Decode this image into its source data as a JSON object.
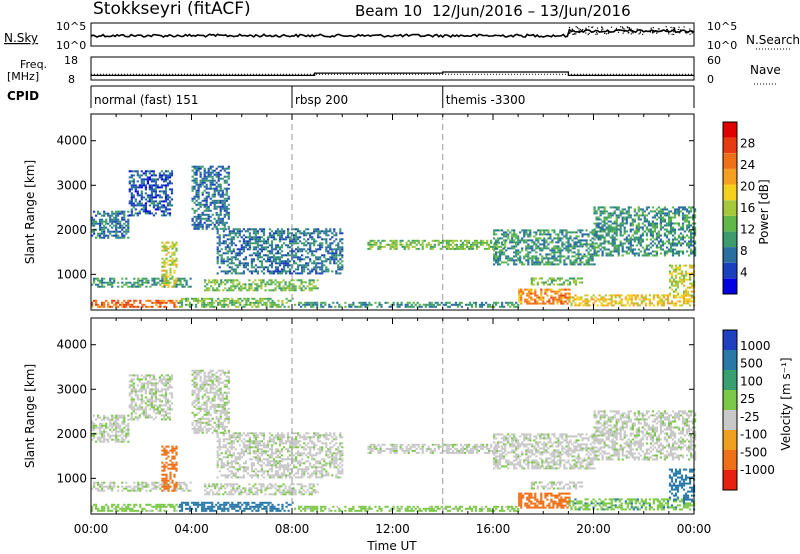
{
  "title": {
    "site": "Stokkseyri (fitACF)",
    "beam": "Beam 10",
    "dates": "12/Jun/2016 – 13/Jun/2016"
  },
  "nsky_panel": {
    "left_label": "N.Sky",
    "right_label": "N.Search",
    "left_ticks": [
      "10^5",
      "10^0"
    ],
    "right_ticks": [
      "10^5",
      "10^0"
    ]
  },
  "freq_panel": {
    "left_label_1": "Freq.",
    "left_label_2": "[MHz]",
    "right_label": "Nave",
    "left_ticks": [
      "18",
      "8"
    ],
    "right_ticks": [
      "60",
      "0"
    ]
  },
  "cpid_panel": {
    "label": "CPID",
    "modes": [
      {
        "name": "normal (fast) 151",
        "start_hour": 0
      },
      {
        "name": "rbsp 200",
        "start_hour": 8
      },
      {
        "name": "themis -3300",
        "start_hour": 14
      }
    ]
  },
  "time_axis": {
    "label": "Time UT",
    "ticks": [
      "00:00",
      "04:00",
      "08:00",
      "12:00",
      "16:00",
      "20:00",
      "00:00"
    ]
  },
  "power_panel": {
    "ylabel": "Slant Range [km]",
    "yticks": [
      "1000",
      "2000",
      "3000",
      "4000"
    ],
    "colorbar_label": "Power [dB]",
    "colorbar_ticks": [
      "4",
      "8",
      "12",
      "16",
      "20",
      "24",
      "28"
    ],
    "colors": [
      "#0000e0",
      "#1a3fbf",
      "#2a6fa0",
      "#3d9c6e",
      "#60b848",
      "#a6c83a",
      "#f5d020",
      "#f5a020",
      "#f07018",
      "#e83a10",
      "#e00000"
    ]
  },
  "velocity_panel": {
    "ylabel": "Slant Range [km]",
    "yticks": [
      "1000",
      "2000",
      "3000",
      "4000"
    ],
    "colorbar_label": "Velocity [m s⁻¹]",
    "colorbar_ticks": [
      "1000",
      "500",
      "100",
      "25",
      "-25",
      "-100",
      "-500",
      "-1000"
    ],
    "colors": [
      "#2040c0",
      "#2878a8",
      "#38a070",
      "#7cc848",
      "#c8c8c8",
      "#f0a020",
      "#f07018",
      "#e82010"
    ]
  },
  "chart_data": {
    "type": "heatmap",
    "x_unit": "hours UT from 12/Jun/2016 00:00",
    "xlim": [
      0,
      24
    ],
    "ylim": [
      200,
      4600
    ],
    "freq_mhz_steps": [
      {
        "from": 0,
        "to": 8.9,
        "value": 10
      },
      {
        "from": 8.9,
        "to": 14,
        "value": 11
      },
      {
        "from": 14,
        "to": 19,
        "value": 11.5
      },
      {
        "from": 19,
        "to": 24,
        "value": 10
      }
    ],
    "nave_level": 15,
    "echo_regions": [
      {
        "t0": 0.0,
        "t1": 3.5,
        "r0": 250,
        "r1": 420,
        "power": 26,
        "vel": 50
      },
      {
        "t0": 3.5,
        "t1": 8.0,
        "r0": 250,
        "r1": 450,
        "power": 14,
        "vel": 200
      },
      {
        "t0": 8.0,
        "t1": 17.0,
        "r0": 250,
        "r1": 380,
        "power": 10,
        "vel": 50
      },
      {
        "t0": 17.0,
        "t1": 19.0,
        "r0": 320,
        "r1": 680,
        "power": 24,
        "vel": -300
      },
      {
        "t0": 19.0,
        "t1": 24.0,
        "r0": 280,
        "r1": 520,
        "power": 20,
        "vel": 80
      },
      {
        "t0": 0.0,
        "t1": 4.0,
        "r0": 700,
        "r1": 900,
        "power": 10,
        "vel": 10
      },
      {
        "t0": 2.8,
        "t1": 3.4,
        "r0": 700,
        "r1": 1700,
        "power": 18,
        "vel": -400
      },
      {
        "t0": 4.5,
        "t1": 9.0,
        "r0": 620,
        "r1": 880,
        "power": 14,
        "vel": 10
      },
      {
        "t0": 0.0,
        "t1": 1.5,
        "r0": 1800,
        "r1": 2400,
        "power": 8,
        "vel": 10
      },
      {
        "t0": 1.5,
        "t1": 3.2,
        "r0": 2300,
        "r1": 3300,
        "power": 6,
        "vel": 10
      },
      {
        "t0": 4.0,
        "t1": 5.5,
        "r0": 2000,
        "r1": 3400,
        "power": 8,
        "vel": 10
      },
      {
        "t0": 5.0,
        "t1": 10.0,
        "r0": 1000,
        "r1": 2000,
        "power": 8,
        "vel": 5
      },
      {
        "t0": 11.0,
        "t1": 16.5,
        "r0": 1550,
        "r1": 1750,
        "power": 14,
        "vel": 5
      },
      {
        "t0": 16.0,
        "t1": 20.0,
        "r0": 1200,
        "r1": 2000,
        "power": 10,
        "vel": 5
      },
      {
        "t0": 17.5,
        "t1": 19.5,
        "r0": 750,
        "r1": 900,
        "power": 14,
        "vel": 10
      },
      {
        "t0": 20.0,
        "t1": 24.0,
        "r0": 1400,
        "r1": 2500,
        "power": 10,
        "vel": 5
      },
      {
        "t0": 23.0,
        "t1": 24.0,
        "r0": 500,
        "r1": 1200,
        "power": 18,
        "vel": 200
      }
    ]
  }
}
